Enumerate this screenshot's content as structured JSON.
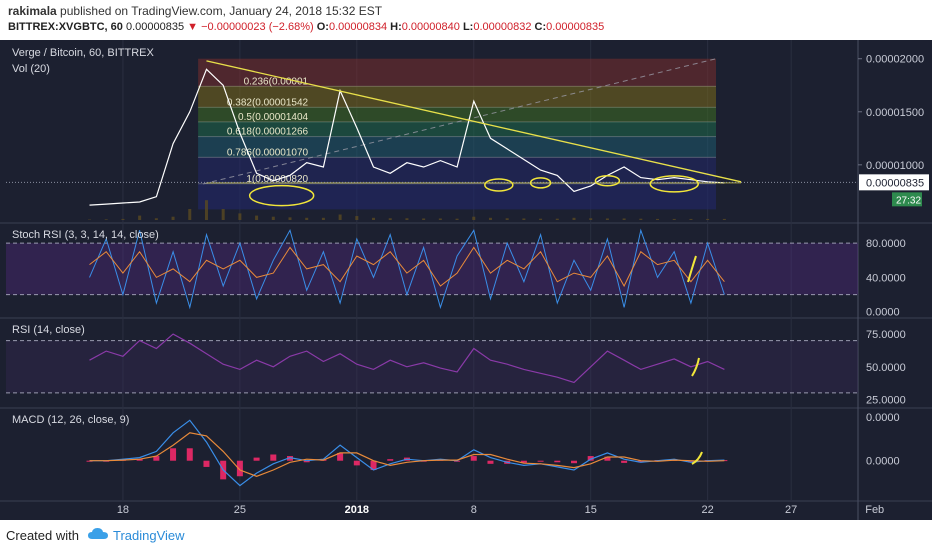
{
  "header": {
    "author": "rakimala",
    "published_text": "published on TradingView.com, January 24, 2018 15:32 EST",
    "symbol": "BITTREX:XVGBTC, 60",
    "last_price": "0.00000835",
    "change": "−0.00000023 (−2.68%)",
    "open_label": "O:",
    "open": "0.00000834",
    "high_label": "H:",
    "high": "0.00000840",
    "low_label": "L:",
    "low": "0.00000832",
    "close_label": "C:",
    "close": "0.00000835"
  },
  "colors": {
    "background": "#1c2030",
    "price_line": "#ffffff",
    "trendline": "#e8e04a",
    "annotation": "#f2e63a",
    "rsi_line": "#8a3aa8",
    "stoch_k": "#3a8ee8",
    "stoch_d": "#e88a3a",
    "macd_line": "#3a8ee8",
    "signal_line": "#e88a3a",
    "histogram": "#ff2a6d",
    "price_tag": "#2a2f44",
    "countdown_tag": "#2e8a4e"
  },
  "chart_data": [
    {
      "type": "line",
      "title": "Verge / Bitcoin, 60, BITTREX",
      "volume_label": "Vol (20)",
      "x_tick_labels": [
        "18",
        "25",
        "2018",
        "8",
        "15",
        "22",
        "27",
        "Feb"
      ],
      "y_tick_labels": [
        "0.00002000",
        "0.00001500",
        "0.00001000"
      ],
      "ylim": [
        4.8e-06,
        2.12e-05
      ],
      "last_price_label": "0.00000835",
      "countdown_label": "27:32",
      "fibonacci": [
        {
          "label": "0.236(0.00001",
          "price": 1.74e-05,
          "fill": "#7a2e2e"
        },
        {
          "label": "0.382(0.00001542",
          "price": 1.542e-05,
          "fill": "#7a6a1a"
        },
        {
          "label": "0.5(0.00001404",
          "price": 1.404e-05,
          "fill": "#3e6e22"
        },
        {
          "label": "0.618(0.00001266",
          "price": 1.266e-05,
          "fill": "#1e6a4a"
        },
        {
          "label": "0.786(0.00001070",
          "price": 1.07e-05,
          "fill": "#1e5a6e"
        },
        {
          "label": "1(0.00000820",
          "price": 8.2e-06,
          "fill": "#22286a"
        }
      ],
      "fib_top": 2e-05,
      "fib_bottom": 5.8e-06,
      "x": [
        16,
        17,
        18,
        19,
        20,
        21,
        22,
        23,
        24,
        25,
        26,
        27,
        28,
        29,
        30,
        31,
        32,
        33,
        34,
        35,
        36,
        37,
        38,
        39,
        40,
        41,
        42,
        43,
        44,
        45,
        46,
        47,
        48,
        49,
        50,
        51,
        52,
        53,
        54
      ],
      "price": [
        6.2e-06,
        6.3e-06,
        6.4e-06,
        6.5e-06,
        7e-06,
        1.2e-05,
        1.5e-05,
        1.9e-05,
        1.75e-05,
        1.3e-05,
        9.2e-06,
        8.5e-06,
        9e-06,
        1.02e-05,
        9.8e-06,
        1.7e-05,
        1.35e-05,
        9.8e-06,
        9.2e-06,
        1.02e-05,
        9.8e-06,
        1.04e-05,
        9.8e-06,
        1.6e-05,
        1.25e-05,
        1.15e-05,
        1.05e-05,
        9.5e-06,
        9e-06,
        7.5e-06,
        8e-06,
        9e-06,
        9.8e-06,
        8.8e-06,
        8.6e-06,
        8.8e-06,
        8.6e-06,
        8.4e-06,
        8.3e-06
      ],
      "volume": [
        0.02,
        0.03,
        0.05,
        0.2,
        0.08,
        0.15,
        0.5,
        0.9,
        0.5,
        0.3,
        0.2,
        0.15,
        0.12,
        0.1,
        0.1,
        0.25,
        0.18,
        0.1,
        0.08,
        0.08,
        0.07,
        0.07,
        0.06,
        0.15,
        0.1,
        0.08,
        0.07,
        0.06,
        0.06,
        0.1,
        0.08,
        0.07,
        0.07,
        0.06,
        0.05,
        0.05,
        0.05,
        0.05,
        0.05
      ]
    },
    {
      "type": "line",
      "title": "Stoch RSI (3, 3, 14, 14, close)",
      "y_tick_labels": [
        "80.0000",
        "40.0000",
        "0.0000"
      ],
      "ylim": [
        -5,
        100
      ],
      "bands": [
        80,
        20
      ],
      "k": [
        40,
        85,
        20,
        95,
        10,
        70,
        5,
        90,
        30,
        80,
        15,
        60,
        95,
        25,
        70,
        10,
        85,
        40,
        90,
        20,
        75,
        5,
        65,
        95,
        15,
        80,
        35,
        90,
        10,
        60,
        25,
        85,
        5,
        95,
        40,
        70,
        10,
        80,
        20
      ],
      "d": [
        55,
        70,
        45,
        70,
        40,
        50,
        35,
        60,
        50,
        60,
        40,
        45,
        75,
        50,
        55,
        35,
        65,
        55,
        70,
        45,
        60,
        30,
        45,
        75,
        45,
        60,
        50,
        70,
        35,
        45,
        40,
        65,
        30,
        70,
        55,
        60,
        35,
        60,
        35
      ]
    },
    {
      "type": "line",
      "title": "RSI (14, close)",
      "y_tick_labels": [
        "75.0000",
        "50.0000",
        "25.0000"
      ],
      "ylim": [
        20,
        85
      ],
      "bands": [
        70,
        30
      ],
      "values": [
        55,
        62,
        58,
        70,
        64,
        75,
        68,
        60,
        52,
        48,
        55,
        50,
        58,
        62,
        54,
        60,
        52,
        48,
        55,
        50,
        53,
        49,
        46,
        64,
        55,
        52,
        48,
        45,
        42,
        38,
        50,
        62,
        55,
        48,
        52,
        56,
        50,
        54,
        48
      ]
    },
    {
      "type": "line",
      "title": "MACD (12, 26, close, 9)",
      "y_tick_labels": [
        "0.0000",
        "0.0000"
      ],
      "ylim": [
        -1.2,
        1.6
      ],
      "macd": [
        0,
        0,
        0.05,
        0.1,
        0.3,
        0.9,
        1.3,
        0.6,
        -0.3,
        -0.8,
        -0.4,
        -0.1,
        0.1,
        0.0,
        0.05,
        0.5,
        0.1,
        -0.3,
        -0.1,
        0.05,
        0.0,
        0.05,
        0.0,
        0.35,
        0.1,
        -0.05,
        -0.15,
        -0.1,
        -0.2,
        -0.3,
        0.05,
        0.25,
        0.05,
        -0.05,
        0.0,
        0.05,
        -0.05,
        0.0,
        0.02
      ],
      "signal": [
        0,
        0,
        0.02,
        0.05,
        0.15,
        0.5,
        0.9,
        0.8,
        0.3,
        -0.3,
        -0.5,
        -0.3,
        -0.05,
        0.05,
        0.02,
        0.25,
        0.25,
        0.0,
        -0.15,
        -0.05,
        0.0,
        0.02,
        0.02,
        0.2,
        0.2,
        0.05,
        -0.08,
        -0.1,
        -0.15,
        -0.22,
        -0.1,
        0.12,
        0.12,
        0.0,
        -0.02,
        0.02,
        0.0,
        -0.02,
        0.0
      ]
    }
  ],
  "footer": {
    "created_with": "Created with",
    "brand": "TradingView"
  }
}
